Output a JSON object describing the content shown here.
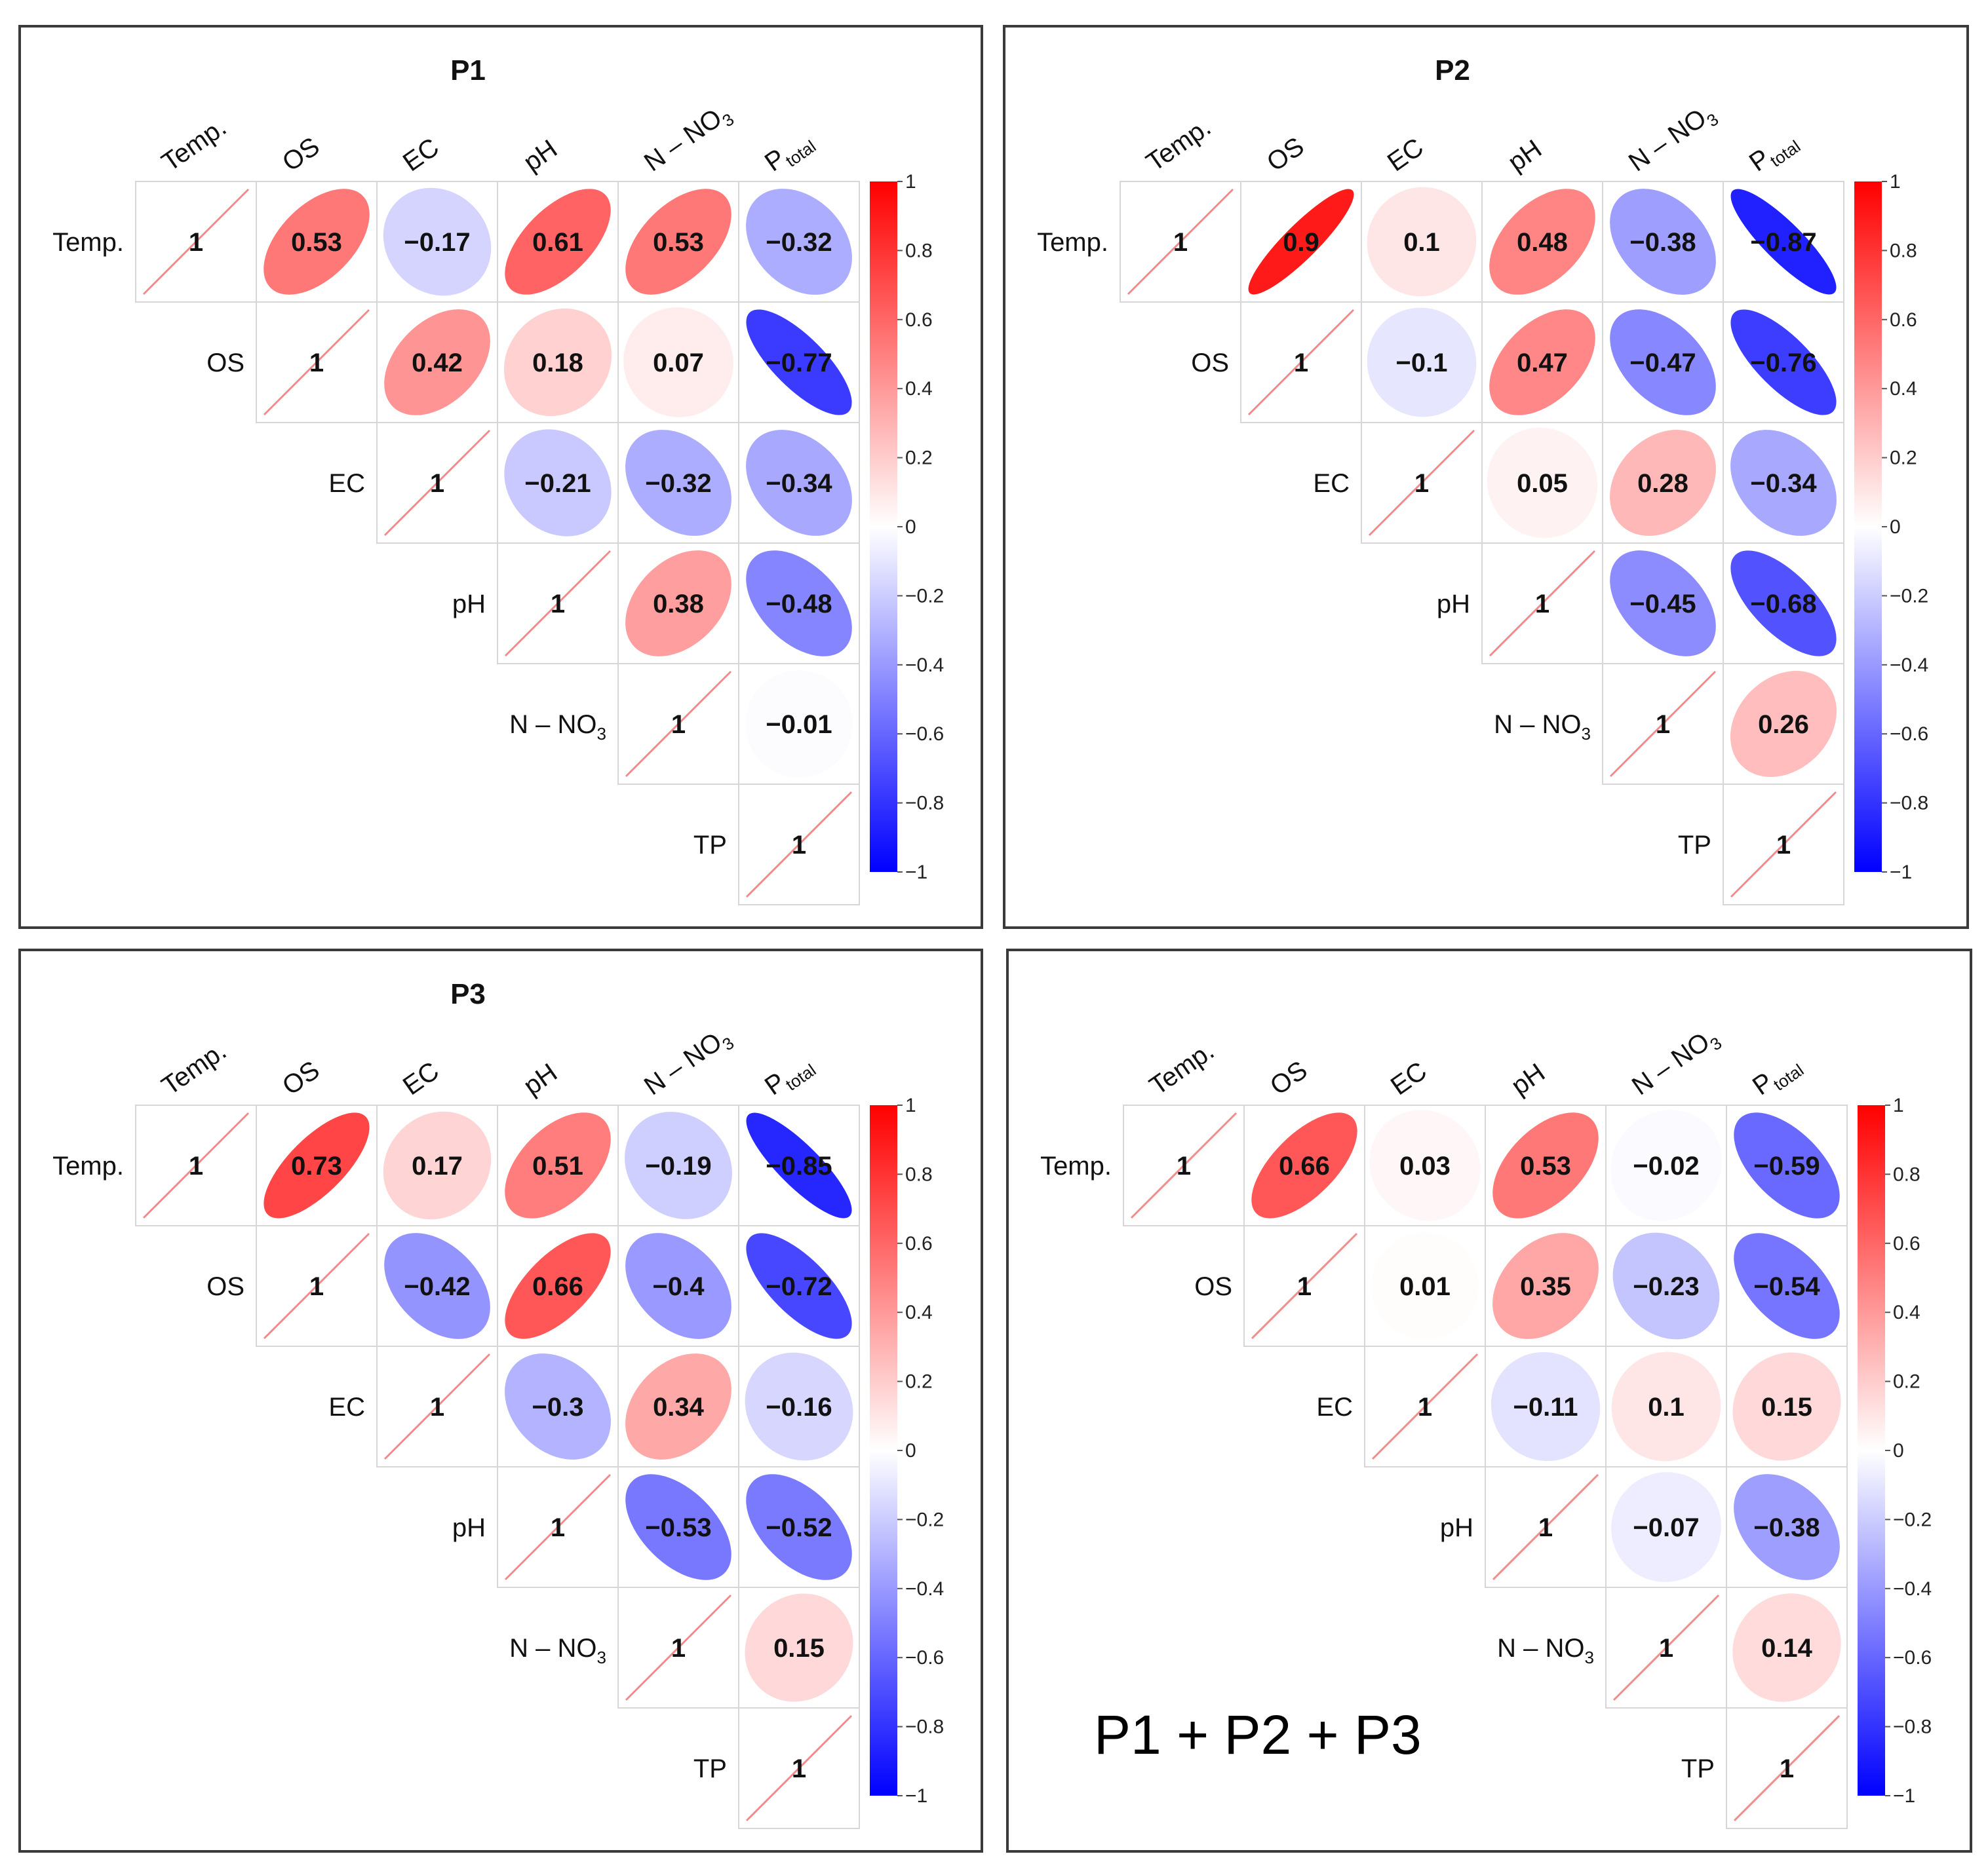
{
  "chart_data": [
    {
      "type": "heatmap",
      "title": "P1",
      "variables": [
        "Temp.",
        "OS",
        "EC",
        "pH",
        "N – NO3",
        "TP"
      ],
      "column_labels": [
        {
          "main": "Temp.",
          "sub": ""
        },
        {
          "main": "OS",
          "sub": ""
        },
        {
          "main": "EC",
          "sub": ""
        },
        {
          "main": "pH",
          "sub": ""
        },
        {
          "main": "N – NO",
          "sub": "3"
        },
        {
          "main": "P",
          "sub": "total"
        }
      ],
      "row_labels": [
        {
          "main": "Temp.",
          "sub": ""
        },
        {
          "main": "OS",
          "sub": ""
        },
        {
          "main": "EC",
          "sub": ""
        },
        {
          "main": "pH",
          "sub": ""
        },
        {
          "main": "N – NO",
          "sub": "3"
        },
        {
          "main": "TP",
          "sub": ""
        }
      ],
      "matrix": [
        [
          1,
          0.53,
          -0.17,
          0.61,
          0.53,
          -0.32
        ],
        [
          null,
          1,
          0.42,
          0.18,
          0.07,
          -0.77
        ],
        [
          null,
          null,
          1,
          -0.21,
          -0.32,
          -0.34
        ],
        [
          null,
          null,
          null,
          1,
          0.38,
          -0.48
        ],
        [
          null,
          null,
          null,
          null,
          1,
          -0.01
        ],
        [
          null,
          null,
          null,
          null,
          null,
          1
        ]
      ],
      "colorbar": {
        "min": -1,
        "max": 1,
        "ticks": [
          "1",
          "0.8",
          "0.6",
          "0.4",
          "0.2",
          "0",
          "−0.2",
          "−0.4",
          "−0.6",
          "−0.8",
          "−1"
        ],
        "colors": {
          "positive": "#ff0000",
          "zero": "#ffffff",
          "negative": "#0000ff"
        }
      },
      "caption": ""
    },
    {
      "type": "heatmap",
      "title": "P2",
      "variables": [
        "Temp.",
        "OS",
        "EC",
        "pH",
        "N – NO3",
        "TP"
      ],
      "column_labels": [
        {
          "main": "Temp.",
          "sub": ""
        },
        {
          "main": "OS",
          "sub": ""
        },
        {
          "main": "EC",
          "sub": ""
        },
        {
          "main": "pH",
          "sub": ""
        },
        {
          "main": "N – NO",
          "sub": "3"
        },
        {
          "main": "P",
          "sub": "total"
        }
      ],
      "row_labels": [
        {
          "main": "Temp.",
          "sub": ""
        },
        {
          "main": "OS",
          "sub": ""
        },
        {
          "main": "EC",
          "sub": ""
        },
        {
          "main": "pH",
          "sub": ""
        },
        {
          "main": "N – NO",
          "sub": "3"
        },
        {
          "main": "TP",
          "sub": ""
        }
      ],
      "matrix": [
        [
          1,
          0.9,
          0.1,
          0.48,
          -0.38,
          -0.87
        ],
        [
          null,
          1,
          -0.1,
          0.47,
          -0.47,
          -0.76
        ],
        [
          null,
          null,
          1,
          0.05,
          0.28,
          -0.34
        ],
        [
          null,
          null,
          null,
          1,
          -0.45,
          -0.68
        ],
        [
          null,
          null,
          null,
          null,
          1,
          0.26
        ],
        [
          null,
          null,
          null,
          null,
          null,
          1
        ]
      ],
      "colorbar": {
        "min": -1,
        "max": 1,
        "ticks": [
          "1",
          "0.8",
          "0.6",
          "0.4",
          "0.2",
          "0",
          "−0.2",
          "−0.4",
          "−0.6",
          "−0.8",
          "−1"
        ],
        "colors": {
          "positive": "#ff0000",
          "zero": "#ffffff",
          "negative": "#0000ff"
        }
      },
      "caption": ""
    },
    {
      "type": "heatmap",
      "title": "P3",
      "variables": [
        "Temp.",
        "OS",
        "EC",
        "pH",
        "N – NO3",
        "TP"
      ],
      "column_labels": [
        {
          "main": "Temp.",
          "sub": ""
        },
        {
          "main": "OS",
          "sub": ""
        },
        {
          "main": "EC",
          "sub": ""
        },
        {
          "main": "pH",
          "sub": ""
        },
        {
          "main": "N – NO",
          "sub": "3"
        },
        {
          "main": "P",
          "sub": "total"
        }
      ],
      "row_labels": [
        {
          "main": "Temp.",
          "sub": ""
        },
        {
          "main": "OS",
          "sub": ""
        },
        {
          "main": "EC",
          "sub": ""
        },
        {
          "main": "pH",
          "sub": ""
        },
        {
          "main": "N – NO",
          "sub": "3"
        },
        {
          "main": "TP",
          "sub": ""
        }
      ],
      "matrix": [
        [
          1,
          0.73,
          0.17,
          0.51,
          -0.19,
          -0.85
        ],
        [
          null,
          1,
          -0.42,
          0.66,
          -0.4,
          -0.72
        ],
        [
          null,
          null,
          1,
          -0.3,
          0.34,
          -0.16
        ],
        [
          null,
          null,
          null,
          1,
          -0.53,
          -0.52
        ],
        [
          null,
          null,
          null,
          null,
          1,
          0.15
        ],
        [
          null,
          null,
          null,
          null,
          null,
          1
        ]
      ],
      "colorbar": {
        "min": -1,
        "max": 1,
        "ticks": [
          "1",
          "0.8",
          "0.6",
          "0.4",
          "0.2",
          "0",
          "−0.2",
          "−0.4",
          "−0.6",
          "−0.8",
          "−1"
        ],
        "colors": {
          "positive": "#ff0000",
          "zero": "#ffffff",
          "negative": "#0000ff"
        }
      },
      "caption": ""
    },
    {
      "type": "heatmap",
      "title": "",
      "variables": [
        "Temp.",
        "OS",
        "EC",
        "pH",
        "N – NO3",
        "TP"
      ],
      "column_labels": [
        {
          "main": "Temp.",
          "sub": ""
        },
        {
          "main": "OS",
          "sub": ""
        },
        {
          "main": "EC",
          "sub": ""
        },
        {
          "main": "pH",
          "sub": ""
        },
        {
          "main": "N – NO",
          "sub": "3"
        },
        {
          "main": "P",
          "sub": "total"
        }
      ],
      "row_labels": [
        {
          "main": "Temp.",
          "sub": ""
        },
        {
          "main": "OS",
          "sub": ""
        },
        {
          "main": "EC",
          "sub": ""
        },
        {
          "main": "pH",
          "sub": ""
        },
        {
          "main": "N – NO",
          "sub": "3"
        },
        {
          "main": "TP",
          "sub": ""
        }
      ],
      "matrix": [
        [
          1,
          0.66,
          0.03,
          0.53,
          -0.02,
          -0.59
        ],
        [
          null,
          1,
          0.01,
          0.35,
          -0.23,
          -0.54
        ],
        [
          null,
          null,
          1,
          -0.11,
          0.1,
          0.15
        ],
        [
          null,
          null,
          null,
          1,
          -0.07,
          -0.38
        ],
        [
          null,
          null,
          null,
          null,
          1,
          0.14
        ],
        [
          null,
          null,
          null,
          null,
          null,
          1
        ]
      ],
      "colorbar": {
        "min": -1,
        "max": 1,
        "ticks": [
          "1",
          "0.8",
          "0.6",
          "0.4",
          "0.2",
          "0",
          "−0.2",
          "−0.4",
          "−0.6",
          "−0.8",
          "−1"
        ],
        "colors": {
          "positive": "#ff0000",
          "zero": "#ffffff",
          "negative": "#0000ff"
        }
      },
      "caption": "P1 + P2 + P3"
    }
  ]
}
